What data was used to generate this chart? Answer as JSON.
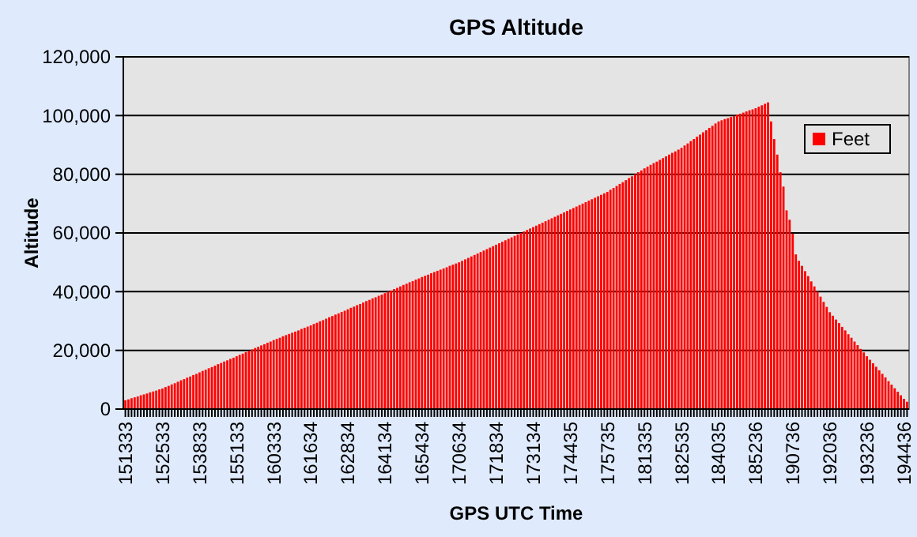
{
  "chart_data": {
    "type": "bar",
    "title": "GPS Altitude",
    "xlabel": "GPS UTC Time",
    "ylabel": "Altitude",
    "categories": [
      "151333",
      null,
      null,
      null,
      null,
      null,
      null,
      null,
      null,
      null,
      null,
      null,
      "152533",
      null,
      null,
      null,
      null,
      null,
      null,
      null,
      null,
      null,
      null,
      null,
      "153833",
      null,
      null,
      null,
      null,
      null,
      null,
      null,
      null,
      null,
      null,
      null,
      "155133",
      null,
      null,
      null,
      null,
      null,
      null,
      null,
      null,
      null,
      null,
      null,
      "160333",
      null,
      null,
      null,
      null,
      null,
      null,
      null,
      null,
      null,
      null,
      null,
      "161634",
      null,
      null,
      null,
      null,
      null,
      null,
      null,
      null,
      null,
      null,
      null,
      "162834",
      null,
      null,
      null,
      null,
      null,
      null,
      null,
      null,
      null,
      null,
      null,
      "164134",
      null,
      null,
      null,
      null,
      null,
      null,
      null,
      null,
      null,
      null,
      null,
      "165434",
      null,
      null,
      null,
      null,
      null,
      null,
      null,
      null,
      null,
      null,
      null,
      "170634",
      null,
      null,
      null,
      null,
      null,
      null,
      null,
      null,
      null,
      null,
      null,
      "171834",
      null,
      null,
      null,
      null,
      null,
      null,
      null,
      null,
      null,
      null,
      null,
      "173134",
      null,
      null,
      null,
      null,
      null,
      null,
      null,
      null,
      null,
      null,
      null,
      "174435",
      null,
      null,
      null,
      null,
      null,
      null,
      null,
      null,
      null,
      null,
      null,
      "175735",
      null,
      null,
      null,
      null,
      null,
      null,
      null,
      null,
      null,
      null,
      null,
      "181335",
      null,
      null,
      null,
      null,
      null,
      null,
      null,
      null,
      null,
      null,
      null,
      "182535",
      null,
      null,
      null,
      null,
      null,
      null,
      null,
      null,
      null,
      null,
      null,
      "184035",
      null,
      null,
      null,
      null,
      null,
      null,
      null,
      null,
      null,
      null,
      null,
      "185236",
      null,
      null,
      null,
      null,
      null,
      null,
      null,
      null,
      null,
      null,
      null,
      "190736",
      null,
      null,
      null,
      null,
      null,
      null,
      null,
      null,
      null,
      null,
      null,
      "192036",
      null,
      null,
      null,
      null,
      null,
      null,
      null,
      null,
      null,
      null,
      null,
      "193236",
      null,
      null,
      null,
      null,
      null,
      null,
      null,
      null,
      null,
      null,
      null,
      "194436",
      null
    ],
    "series": [
      {
        "name": "Feet",
        "color": "#ff0000",
        "values": [
          3000,
          3300,
          3700,
          4000,
          4300,
          4700,
          5000,
          5300,
          5700,
          6000,
          6300,
          6700,
          7000,
          7500,
          7900,
          8400,
          8800,
          9300,
          9800,
          10200,
          10700,
          11100,
          11600,
          12000,
          12500,
          13000,
          13400,
          13900,
          14300,
          14800,
          15300,
          15700,
          16200,
          16600,
          17100,
          17500,
          18000,
          18500,
          18900,
          19400,
          19800,
          20300,
          20800,
          21200,
          21700,
          22100,
          22600,
          23000,
          23500,
          23900,
          24300,
          24800,
          25200,
          25600,
          26000,
          26400,
          26800,
          27300,
          27700,
          28100,
          28500,
          29000,
          29400,
          29900,
          30300,
          30800,
          31300,
          31700,
          32200,
          32600,
          33100,
          33500,
          34000,
          34500,
          34900,
          35400,
          35800,
          36300,
          36800,
          37200,
          37700,
          38100,
          38600,
          39000,
          39500,
          40000,
          40400,
          40900,
          41300,
          41800,
          42300,
          42700,
          43200,
          43600,
          44100,
          44500,
          45000,
          45400,
          45800,
          46300,
          46700,
          47100,
          47500,
          47900,
          48300,
          48800,
          49200,
          49600,
          50000,
          50500,
          51000,
          51500,
          52000,
          52500,
          53000,
          53500,
          54000,
          54500,
          55000,
          55500,
          56000,
          56500,
          57000,
          57500,
          58000,
          58500,
          59000,
          59500,
          60000,
          60500,
          61000,
          61500,
          62000,
          62500,
          63000,
          63500,
          64000,
          64500,
          65000,
          65500,
          66000,
          66500,
          67000,
          67500,
          68000,
          68500,
          69000,
          69500,
          70000,
          70500,
          71000,
          71500,
          72000,
          72500,
          73000,
          73500,
          74000,
          74700,
          75300,
          76000,
          76700,
          77300,
          78000,
          78700,
          79300,
          80000,
          80700,
          81300,
          82000,
          82600,
          83200,
          83800,
          84300,
          84900,
          85500,
          86100,
          86700,
          87300,
          87800,
          88400,
          89000,
          89800,
          90500,
          91300,
          92000,
          92800,
          93500,
          94300,
          95000,
          95800,
          96500,
          97300,
          98000,
          98400,
          98800,
          99100,
          99500,
          99900,
          100300,
          100600,
          101000,
          101400,
          101800,
          102100,
          102500,
          103000,
          103500,
          104000,
          104500,
          98000,
          92000,
          86700,
          80700,
          75800,
          67700,
          64500,
          59700,
          52700,
          50500,
          48800,
          47000,
          45300,
          43500,
          41800,
          40000,
          38300,
          36500,
          34800,
          33000,
          31800,
          30500,
          29300,
          28000,
          26800,
          25500,
          24300,
          23000,
          21800,
          20500,
          19300,
          18000,
          16800,
          15600,
          14400,
          13200,
          12000,
          10800,
          9500,
          8300,
          7100,
          5900,
          4700,
          3500,
          2500
        ]
      }
    ],
    "ylim": [
      0,
      120000
    ],
    "yticks": [
      {
        "value": 0,
        "label": "0"
      },
      {
        "value": 20000,
        "label": "20,000"
      },
      {
        "value": 40000,
        "label": "40,000"
      },
      {
        "value": 60000,
        "label": "60,000"
      },
      {
        "value": 80000,
        "label": "80,000"
      },
      {
        "value": 100000,
        "label": "100,000"
      },
      {
        "value": 120000,
        "label": "120,000"
      }
    ],
    "grid": "y",
    "legend": "right"
  }
}
